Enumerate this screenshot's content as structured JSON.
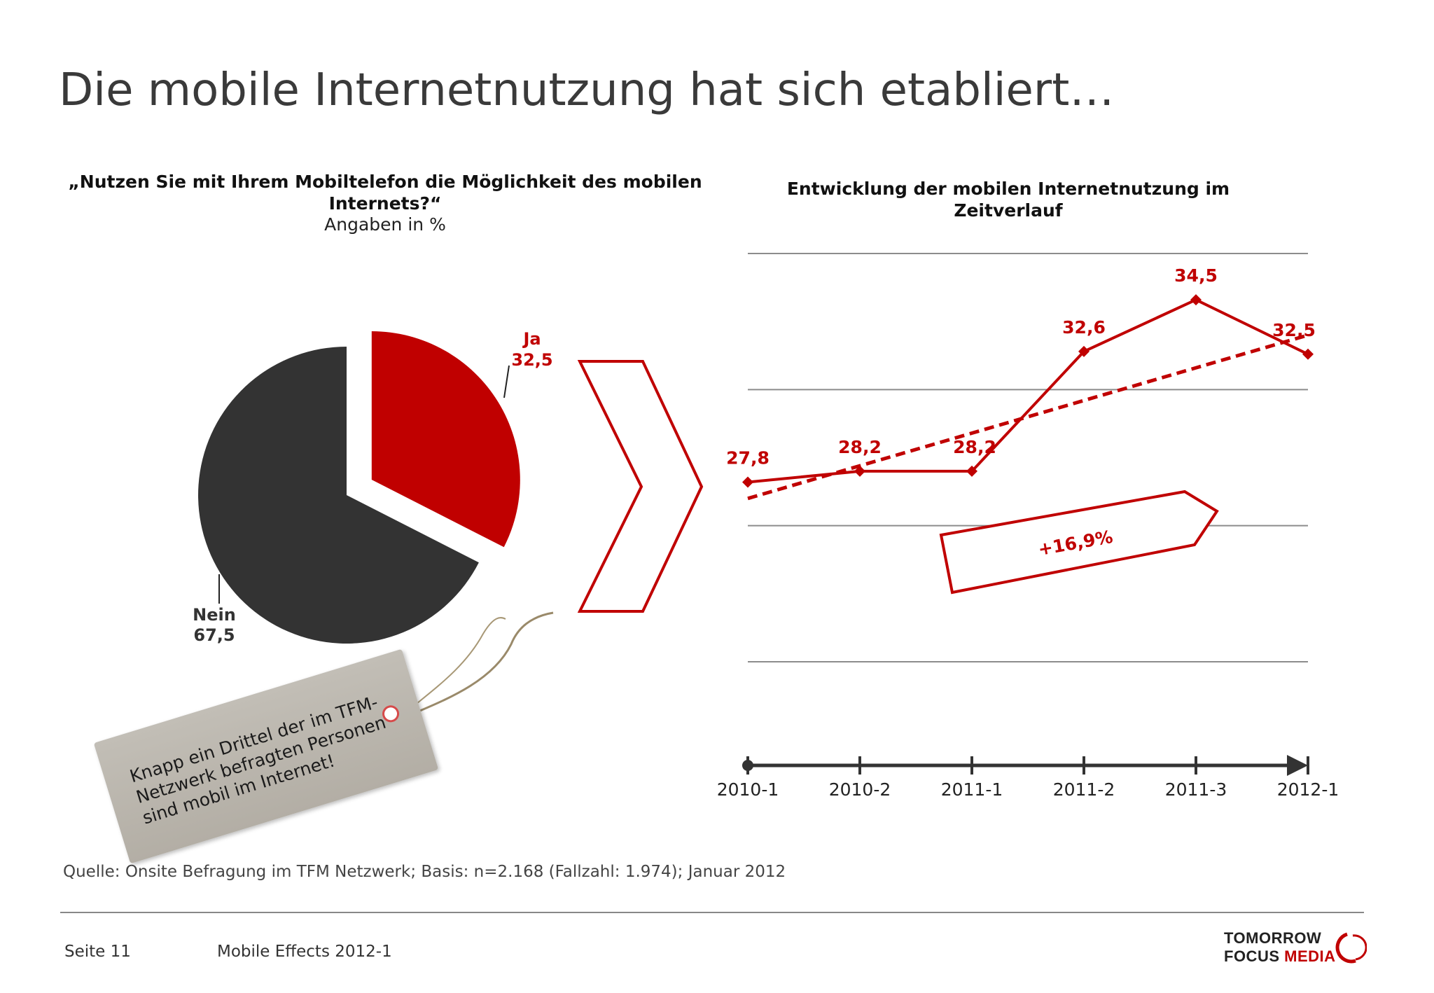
{
  "page": {
    "title": "Die mobile Internetnutzung hat sich etabliert…",
    "source": "Quelle: Onsite Befragung im TFM Netzwerk; Basis: n=2.168 (Fallzahl: 1.974); Januar 2012",
    "footer": {
      "page_number": "Seite 11",
      "report": "Mobile Effects 2012-1",
      "logo_line1": "TOMORROW",
      "logo_line2a": "FOCUS ",
      "logo_line2b": "MEDIA"
    },
    "tag_text": "Knapp ein Drittel der im TFM-Netzwerk befragten Personen sind mobil im Internet!",
    "arrow_label": "+16,9%"
  },
  "colors": {
    "accent": "#c00000",
    "dark": "#333333",
    "grid": "#8c8c8c",
    "axis": "#333333"
  },
  "chart_data": [
    {
      "type": "pie",
      "title": "„Nutzen Sie mit Ihrem Mobiltelefon die Möglichkeit des mobilen Internets?“",
      "subtitle": "Angaben in %",
      "slices": [
        {
          "label": "Ja",
          "value": 32.5,
          "value_label": "32,5",
          "color": "#c00000",
          "exploded": true
        },
        {
          "label": "Nein",
          "value": 67.5,
          "value_label": "67,5",
          "color": "#333333",
          "exploded": false
        }
      ]
    },
    {
      "type": "line",
      "title": "Entwicklung der mobilen Internetnutzung im Zeitverlauf",
      "categories": [
        "2010-1",
        "2010-2",
        "2011-1",
        "2011-2",
        "2011-3",
        "2012-1"
      ],
      "series": [
        {
          "values": [
            27.8,
            28.2,
            28.2,
            32.6,
            34.5,
            32.5
          ],
          "value_labels": [
            "27,8",
            "28,2",
            "28,2",
            "32,6",
            "34,5",
            "32,5"
          ],
          "color": "#c00000",
          "style": "solid",
          "markers": "diamond"
        },
        {
          "values": [
            27.2,
            28.4,
            29.6,
            30.8,
            32.0,
            33.2
          ],
          "color": "#c00000",
          "style": "dashed",
          "trendline": true
        }
      ],
      "ylim": [
        20,
        38
      ],
      "gridlines": [
        21.2,
        26.2,
        31.2,
        36.2
      ],
      "grid": true
    }
  ]
}
